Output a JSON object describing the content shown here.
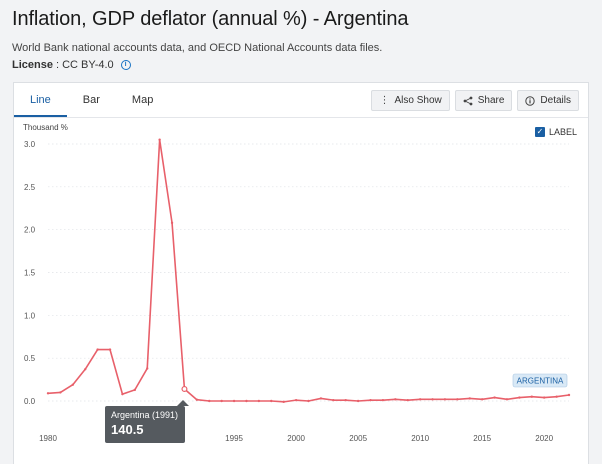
{
  "page": {
    "title": "Inflation, GDP deflator (annual %) - Argentina",
    "source": "World Bank national accounts data, and OECD National Accounts data files.",
    "license_label": "License",
    "license_value": ": CC BY-4.0"
  },
  "tabs": [
    {
      "label": "Line",
      "active": true
    },
    {
      "label": "Bar",
      "active": false
    },
    {
      "label": "Map",
      "active": false
    }
  ],
  "toolbar": {
    "also_show": "Also Show",
    "share": "Share",
    "details": "Details"
  },
  "label_toggle": {
    "text": "LABEL",
    "checked": true
  },
  "colors": {
    "line": "#e8606a",
    "accent": "#1a5fa3",
    "series_tag_bg": "#d9e9f6"
  },
  "tooltip": {
    "name": "Argentina (1991)",
    "value": "140.5"
  },
  "chart_data": {
    "type": "line",
    "ylabel": "Thousand %",
    "ylim": [
      0,
      3.0
    ],
    "y_ticks": [
      "0.0",
      "0.5",
      "1.0",
      "1.5",
      "2.0",
      "2.5",
      "3.0"
    ],
    "y_tick_values": [
      0,
      0.5,
      1.0,
      1.5,
      2.0,
      2.5,
      3.0
    ],
    "xlim": [
      1980,
      2022
    ],
    "x_ticks": [
      "1980",
      "1995",
      "2000",
      "2005",
      "2010",
      "2015",
      "2020"
    ],
    "x_tick_values": [
      1980,
      1995,
      2000,
      2005,
      2010,
      2015,
      2020
    ],
    "series": [
      {
        "name": "ARGENTINA",
        "x": [
          1980,
          1981,
          1982,
          1983,
          1984,
          1985,
          1986,
          1987,
          1988,
          1989,
          1990,
          1991,
          1992,
          1993,
          1994,
          1995,
          1996,
          1997,
          1998,
          1999,
          2000,
          2001,
          2002,
          2003,
          2004,
          2005,
          2006,
          2007,
          2008,
          2009,
          2010,
          2011,
          2012,
          2013,
          2014,
          2015,
          2016,
          2017,
          2018,
          2019,
          2020,
          2021,
          2022
        ],
        "values": [
          0.09,
          0.1,
          0.19,
          0.37,
          0.6,
          0.6,
          0.08,
          0.13,
          0.38,
          3.05,
          2.08,
          0.1405,
          0.015,
          0.0,
          0.0,
          0.0,
          0.0,
          0.0,
          0.0,
          -0.01,
          0.01,
          0.0,
          0.03,
          0.01,
          0.01,
          0.0,
          0.01,
          0.01,
          0.02,
          0.01,
          0.02,
          0.02,
          0.02,
          0.02,
          0.03,
          0.02,
          0.04,
          0.02,
          0.04,
          0.05,
          0.04,
          0.05,
          0.07
        ]
      }
    ]
  }
}
